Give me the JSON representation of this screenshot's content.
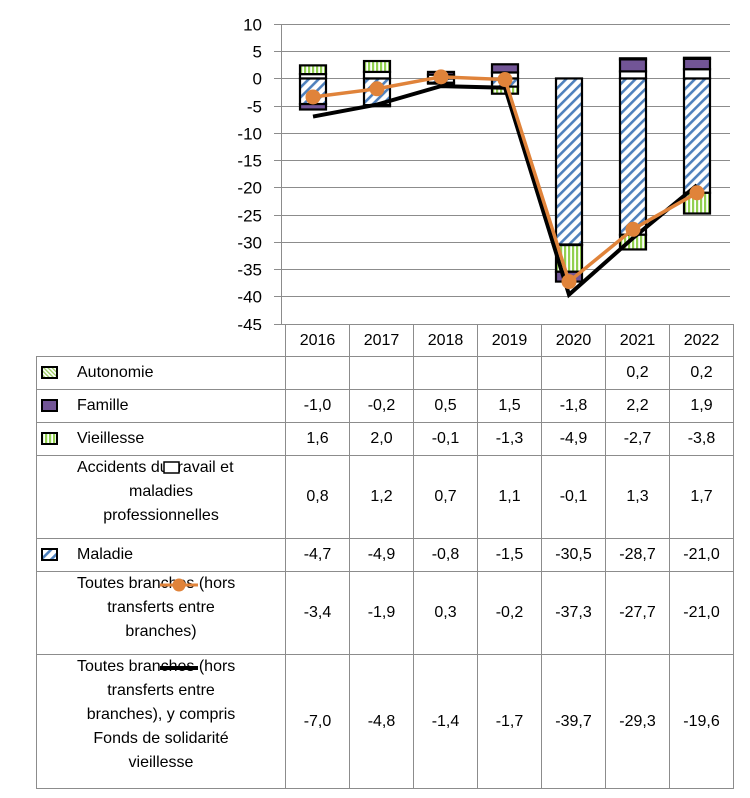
{
  "chart_data": {
    "type": "bar",
    "stacked": true,
    "title": "",
    "xlabel": "",
    "ylabel": "",
    "ylim": [
      -45,
      10
    ],
    "yticks": [
      10,
      5,
      0,
      -5,
      -10,
      -15,
      -20,
      -25,
      -30,
      -35,
      -40,
      -45
    ],
    "ytick_labels": [
      "10",
      "5",
      "0",
      "-5",
      "-10",
      "-15",
      "-20",
      "-25",
      "-30",
      "-35",
      "-40",
      "-45"
    ],
    "grid": true,
    "legend_placement": "data-table-left",
    "categories": [
      "2016",
      "2017",
      "2018",
      "2019",
      "2020",
      "2021",
      "2022"
    ],
    "series": [
      {
        "name": "Autonomie",
        "kind": "bar",
        "pattern": "diagonal-light-green",
        "color": "#9BCB5F",
        "values": [
          null,
          null,
          null,
          null,
          null,
          0.2,
          0.2
        ],
        "labels": [
          "",
          "",
          "",
          "",
          "",
          "0,2",
          "0,2"
        ]
      },
      {
        "name": "Famille",
        "kind": "bar",
        "pattern": "solid",
        "color": "#725596",
        "values": [
          -1.0,
          -0.2,
          0.5,
          1.5,
          -1.8,
          2.2,
          1.9
        ],
        "labels": [
          "-1,0",
          "-0,2",
          "0,5",
          "1,5",
          "-1,8",
          "2,2",
          "1,9"
        ]
      },
      {
        "name": "Vieillesse",
        "kind": "bar",
        "pattern": "vertical-green",
        "color": "#92D050",
        "values": [
          1.6,
          2.0,
          -0.1,
          -1.3,
          -4.9,
          -2.7,
          -3.8
        ],
        "labels": [
          "1,6",
          "2,0",
          "-0,1",
          "-1,3",
          "-4,9",
          "-2,7",
          "-3,8"
        ]
      },
      {
        "name": "Accidents du travail et maladies professionnelles",
        "kind": "bar",
        "pattern": "solid",
        "color": "#FFFFFF",
        "values": [
          0.8,
          1.2,
          0.7,
          1.1,
          -0.1,
          1.3,
          1.7
        ],
        "labels": [
          "0,8",
          "1,2",
          "0,7",
          "1,1",
          "-0,1",
          "1,3",
          "1,7"
        ]
      },
      {
        "name": "Maladie",
        "kind": "bar",
        "pattern": "diagonal-blue",
        "color": "#4F81BD",
        "values": [
          -4.7,
          -4.9,
          -0.8,
          -1.5,
          -30.5,
          -28.7,
          -21.0
        ],
        "labels": [
          "-4,7",
          "-4,9",
          "-0,8",
          "-1,5",
          "-30,5",
          "-28,7",
          "-21,0"
        ]
      },
      {
        "name": "Toutes branches (hors transferts entre branches)",
        "kind": "line",
        "marker": "circle",
        "color": "#E0833A",
        "values": [
          -3.4,
          -1.9,
          0.3,
          -0.2,
          -37.3,
          -27.7,
          -21.0
        ],
        "labels": [
          "-3,4",
          "-1,9",
          "0,3",
          "-0,2",
          "-37,3",
          "-27,7",
          "-21,0"
        ]
      },
      {
        "name": "Toutes branches (hors transferts entre branches), y compris Fonds de solidarité vieillesse",
        "kind": "line",
        "marker": "none",
        "color": "#000000",
        "values": [
          -7.0,
          -4.8,
          -1.4,
          -1.7,
          -39.7,
          -29.3,
          -19.6
        ],
        "labels": [
          "-7,0",
          "-4,8",
          "-1,4",
          "-1,7",
          "-39,7",
          "-29,3",
          "-19,6"
        ]
      }
    ]
  },
  "table": {
    "rows": [
      {
        "label": "Autonomie",
        "label_lines": [
          "Autonomie"
        ]
      },
      {
        "label": "Famille",
        "label_lines": [
          "Famille"
        ]
      },
      {
        "label": "Vieillesse",
        "label_lines": [
          "Vieillesse"
        ]
      },
      {
        "label": "Accidents du travail et maladies professionnelles",
        "label_lines": [
          "Accidents du travail et",
          "maladies",
          "professionnelles"
        ]
      },
      {
        "label": "Maladie",
        "label_lines": [
          "Maladie"
        ]
      },
      {
        "label": "Toutes branches (hors transferts entre branches)",
        "label_lines": [
          "Toutes branches (hors",
          "transferts entre",
          "branches)"
        ]
      },
      {
        "label": "Toutes branches (hors transferts entre branches), y compris Fonds de solidarité vieillesse",
        "label_lines": [
          "Toutes branches (hors",
          "transferts entre",
          "branches), y compris",
          "Fonds de solidarité",
          "vieillesse"
        ]
      }
    ]
  }
}
